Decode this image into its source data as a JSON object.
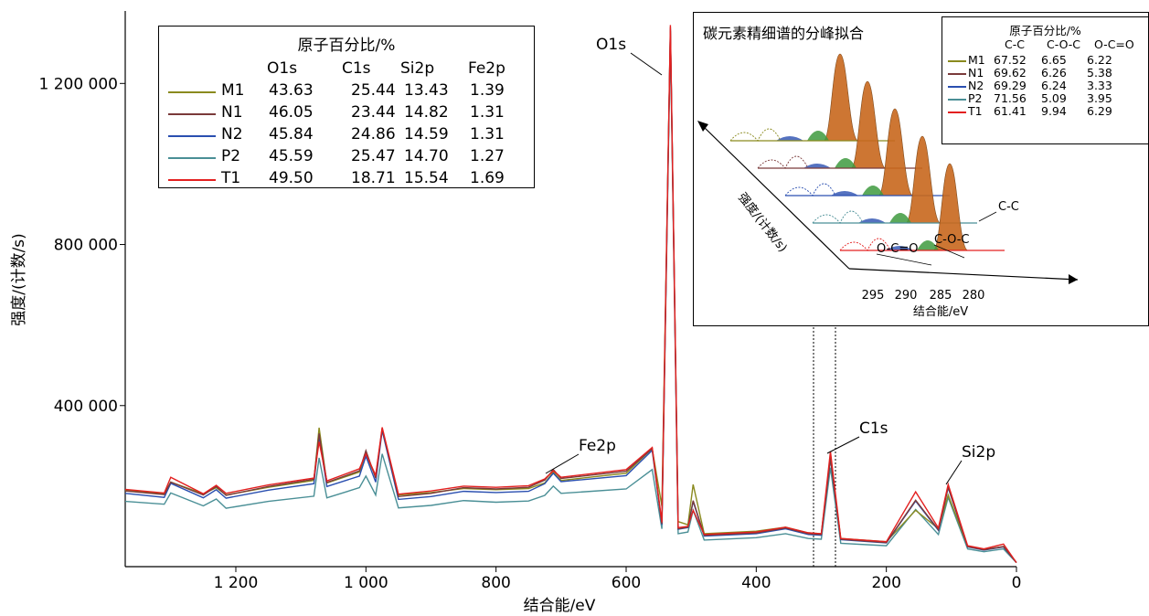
{
  "chart_data": {
    "type": "line",
    "title": "",
    "xlabel": "结合能/eV",
    "ylabel": "强度/(计数/s)",
    "x_reversed": true,
    "xlim": [
      0,
      1370
    ],
    "ylim": [
      0,
      1380000
    ],
    "x_ticks": [
      1200,
      1000,
      800,
      600,
      400,
      200,
      0
    ],
    "x_tick_labels": [
      "1 200",
      "1 000",
      "800",
      "600",
      "400",
      "200",
      "0"
    ],
    "y_ticks": [
      400000,
      800000,
      1200000
    ],
    "y_tick_labels": [
      "400 000",
      "800 000",
      "1 200 000"
    ],
    "grid": false,
    "legend_position": "top-left",
    "colors": {
      "M1": "#8a8a1e",
      "N1": "#7a3a3a",
      "N2": "#2a4fb0",
      "P2": "#4a8f96",
      "T1": "#e32020"
    },
    "x": [
      1370,
      1310,
      1300,
      1250,
      1230,
      1215,
      1150,
      1080,
      1072,
      1060,
      1010,
      1000,
      985,
      975,
      950,
      900,
      850,
      800,
      750,
      725,
      712,
      700,
      600,
      560,
      545,
      532,
      520,
      505,
      497,
      480,
      400,
      355,
      320,
      300,
      286,
      270,
      200,
      155,
      120,
      105,
      75,
      50,
      20,
      0
    ],
    "series": [
      {
        "name": "M1",
        "values": [
          190000,
          181000,
          210000,
          181000,
          196000,
          178000,
          197000,
          214000,
          345000,
          208000,
          235000,
          275000,
          225000,
          340000,
          178000,
          184000,
          194000,
          191000,
          194000,
          208000,
          235000,
          214000,
          232000,
          293000,
          150000,
          1330000,
          112000,
          104000,
          204000,
          82000,
          88000,
          98000,
          84000,
          82000,
          272000,
          70000,
          62000,
          140000,
          94000,
          178000,
          50000,
          42000,
          50000,
          10000
        ]
      },
      {
        "name": "N1",
        "values": [
          188000,
          179000,
          210000,
          178000,
          199000,
          177000,
          199000,
          217000,
          331000,
          209000,
          238000,
          288000,
          220000,
          343000,
          174000,
          182000,
          196000,
          193000,
          197000,
          215000,
          241000,
          219000,
          237000,
          293000,
          106000,
          1340000,
          94000,
          98000,
          164000,
          78000,
          84000,
          96000,
          82000,
          80000,
          269000,
          68000,
          60000,
          165000,
          92000,
          198000,
          50000,
          42000,
          50000,
          10000
        ]
      },
      {
        "name": "N2",
        "values": [
          182000,
          172000,
          207000,
          171000,
          191000,
          170000,
          190000,
          206000,
          324000,
          199000,
          225000,
          274000,
          210000,
          338000,
          167000,
          174000,
          187000,
          184000,
          187000,
          206000,
          232000,
          211000,
          226000,
          289000,
          104000,
          1334000,
          93000,
          97000,
          162000,
          76000,
          82000,
          94000,
          80000,
          78000,
          269000,
          67000,
          59000,
          163000,
          90000,
          196000,
          49000,
          41000,
          49000,
          10000
        ]
      },
      {
        "name": "P2",
        "values": [
          162000,
          155000,
          183000,
          151000,
          168000,
          145000,
          162000,
          175000,
          270000,
          171000,
          196000,
          225000,
          178000,
          280000,
          146000,
          152000,
          164000,
          160000,
          163000,
          177000,
          200000,
          182000,
          193000,
          241000,
          94000,
          1310000,
          82000,
          86000,
          140000,
          66000,
          72000,
          82000,
          70000,
          68000,
          246000,
          58000,
          52000,
          142000,
          80000,
          172000,
          44000,
          37000,
          44000,
          10000
        ]
      },
      {
        "name": "T1",
        "values": [
          192000,
          183000,
          222000,
          181000,
          202000,
          182000,
          203000,
          220000,
          310000,
          213000,
          243000,
          280000,
          227000,
          346000,
          180000,
          188000,
          200000,
          197000,
          201000,
          218000,
          238000,
          222000,
          241000,
          296000,
          110000,
          1345000,
          97000,
          100000,
          140000,
          80000,
          86000,
          98000,
          84000,
          82000,
          286000,
          70000,
          62000,
          186000,
          96000,
          204000,
          52000,
          44000,
          56000,
          10000
        ]
      }
    ],
    "annotations": [
      {
        "label": "O1s",
        "x": 532
      },
      {
        "label": "Fe2p",
        "x": 712
      },
      {
        "label": "C1s",
        "x": 286
      },
      {
        "label": "Si2p",
        "x": 105
      }
    ],
    "inset": {
      "title": "碳元素精细谱的分峰拟合",
      "xlabel": "结合能/eV",
      "ylabel": "强度/(计数/s)",
      "x_ticks": [
        295,
        290,
        285,
        280
      ],
      "x_tick_labels": [
        "295",
        "290",
        "285",
        "280"
      ],
      "peak_labels": [
        "C-C",
        "C-O-C",
        "O-C=O"
      ],
      "legend": {
        "title": "原子百分比/%",
        "columns": [
          "C-C",
          "C-O-C",
          "O-C=O"
        ],
        "rows": [
          {
            "name": "M1",
            "values": [
              "67.52",
              "6.65",
              "6.22"
            ]
          },
          {
            "name": "N1",
            "values": [
              "69.62",
              "6.26",
              "5.38"
            ]
          },
          {
            "name": "N2",
            "values": [
              "69.29",
              "6.24",
              "3.33"
            ]
          },
          {
            "name": "P2",
            "values": [
              "71.56",
              "5.09",
              "3.95"
            ]
          },
          {
            "name": "T1",
            "values": [
              "61.41",
              "9.94",
              "6.29"
            ]
          }
        ]
      }
    },
    "legend": {
      "title": "原子百分比/%",
      "columns": [
        "O1s",
        "C1s",
        "Si2p",
        "Fe2p"
      ],
      "rows": [
        {
          "name": "M1",
          "values": [
            "43.63",
            "25.44",
            "13.43",
            "1.39"
          ]
        },
        {
          "name": "N1",
          "values": [
            "46.05",
            "23.44",
            "14.82",
            "1.31"
          ]
        },
        {
          "name": "N2",
          "values": [
            "45.84",
            "24.86",
            "14.59",
            "1.31"
          ]
        },
        {
          "name": "P2",
          "values": [
            "45.59",
            "25.47",
            "14.70",
            "1.27"
          ]
        },
        {
          "name": "T1",
          "values": [
            "49.50",
            "18.71",
            "15.54",
            "1.69"
          ]
        }
      ]
    }
  }
}
